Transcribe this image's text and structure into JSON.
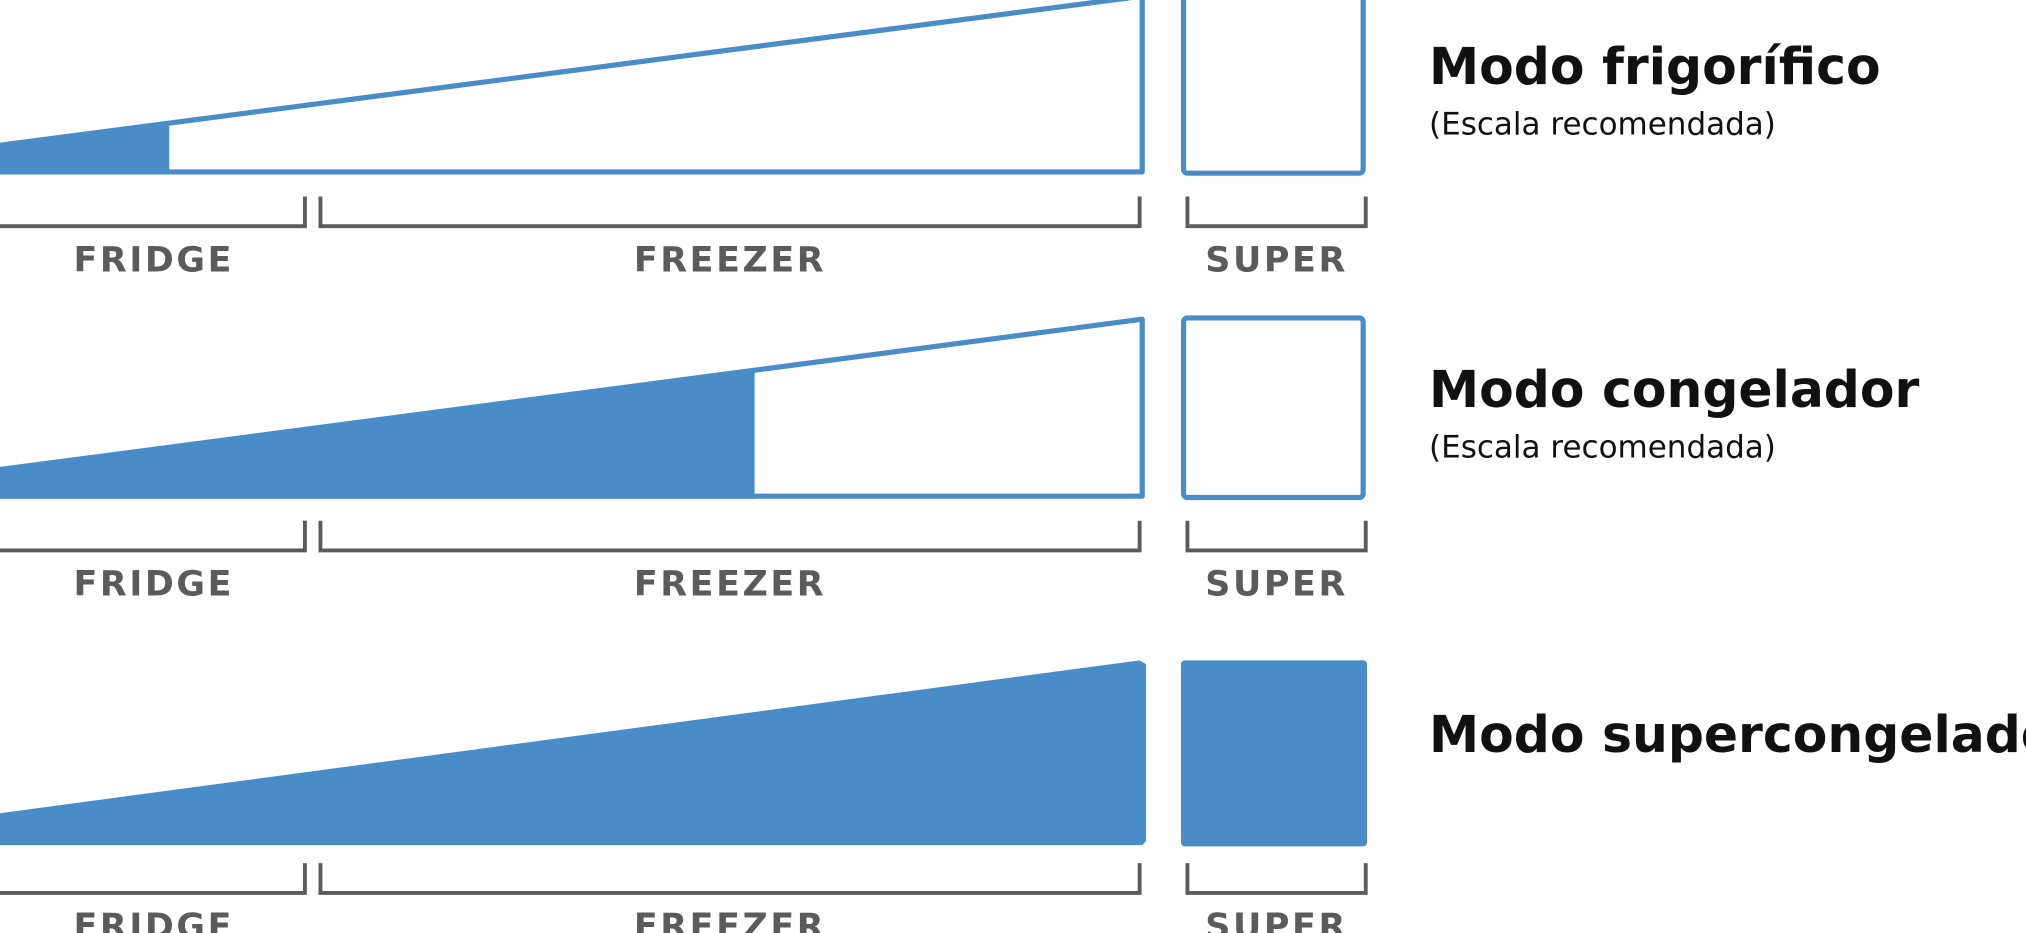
{
  "rows": [
    {
      "title": "Modo frigorífico",
      "subtitle": "(Escala recomendada)",
      "labels": [
        "FRIDGE",
        "FREEZER",
        "SUPER"
      ]
    },
    {
      "title": "Modo congelador",
      "subtitle": "(Escala recomendada)",
      "labels": [
        "FRIDGE",
        "FREEZER",
        "SUPER"
      ]
    },
    {
      "title": "Modo supercongelado",
      "labels": [
        "FRIDGE",
        "FREEZER",
        "SUPER"
      ]
    }
  ]
}
